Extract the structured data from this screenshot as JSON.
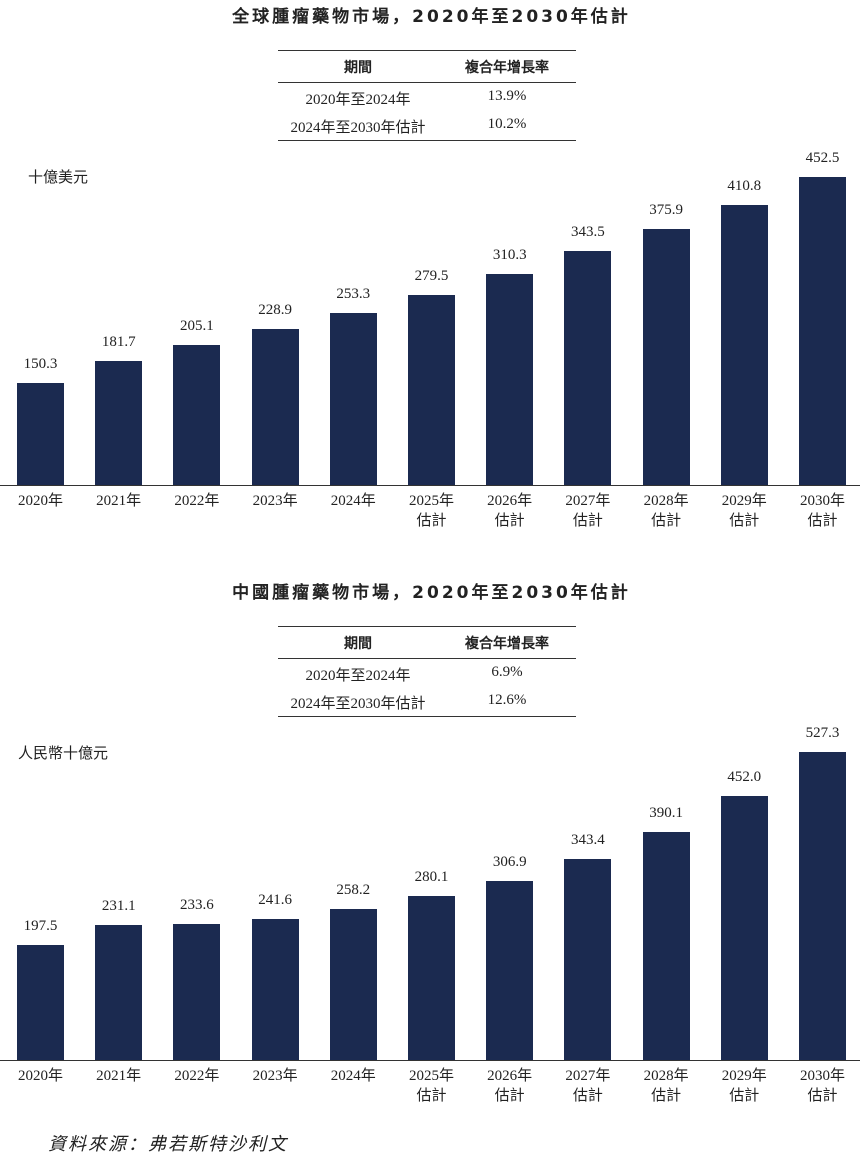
{
  "chart_data": [
    {
      "type": "bar",
      "title": "全球腫瘤藥物市場，2020年至2030年估計",
      "table": {
        "header": [
          "期間",
          "複合年增長率"
        ],
        "rows": [
          [
            "2020年至2024年",
            "13.9%"
          ],
          [
            "2024年至2030年估計",
            "10.2%"
          ]
        ]
      },
      "y_label": "十億美元",
      "categories": [
        "2020年",
        "2021年",
        "2022年",
        "2023年",
        "2024年",
        "2025年\n估計",
        "2026年\n估計",
        "2027年\n估計",
        "2028年\n估計",
        "2029年\n估計",
        "2030年\n估計"
      ],
      "values": [
        150.3,
        181.7,
        205.1,
        228.9,
        253.3,
        279.5,
        310.3,
        343.5,
        375.9,
        410.8,
        452.5
      ],
      "color": "#1b2a50"
    },
    {
      "type": "bar",
      "title": "中國腫瘤藥物市場，2020年至2030年估計",
      "table": {
        "header": [
          "期間",
          "複合年增長率"
        ],
        "rows": [
          [
            "2020年至2024年",
            "6.9%"
          ],
          [
            "2024年至2030年估計",
            "12.6%"
          ]
        ]
      },
      "y_label": "人民幣十億元",
      "categories": [
        "2020年",
        "2021年",
        "2022年",
        "2023年",
        "2024年",
        "2025年\n估計",
        "2026年\n估計",
        "2027年\n估計",
        "2028年\n估計",
        "2029年\n估計",
        "2030年\n估計"
      ],
      "values": [
        197.5,
        231.1,
        233.6,
        241.6,
        258.2,
        280.1,
        306.9,
        343.4,
        390.1,
        452.0,
        527.3
      ],
      "value_labels": [
        "197.5",
        "231.1",
        "233.6",
        "241.6",
        "258.2",
        "280.1",
        "306.9",
        "343.4",
        "390.1",
        "452.0",
        "527.3"
      ],
      "color": "#1b2a50"
    }
  ],
  "source": "資料來源：弗若斯特沙利文"
}
